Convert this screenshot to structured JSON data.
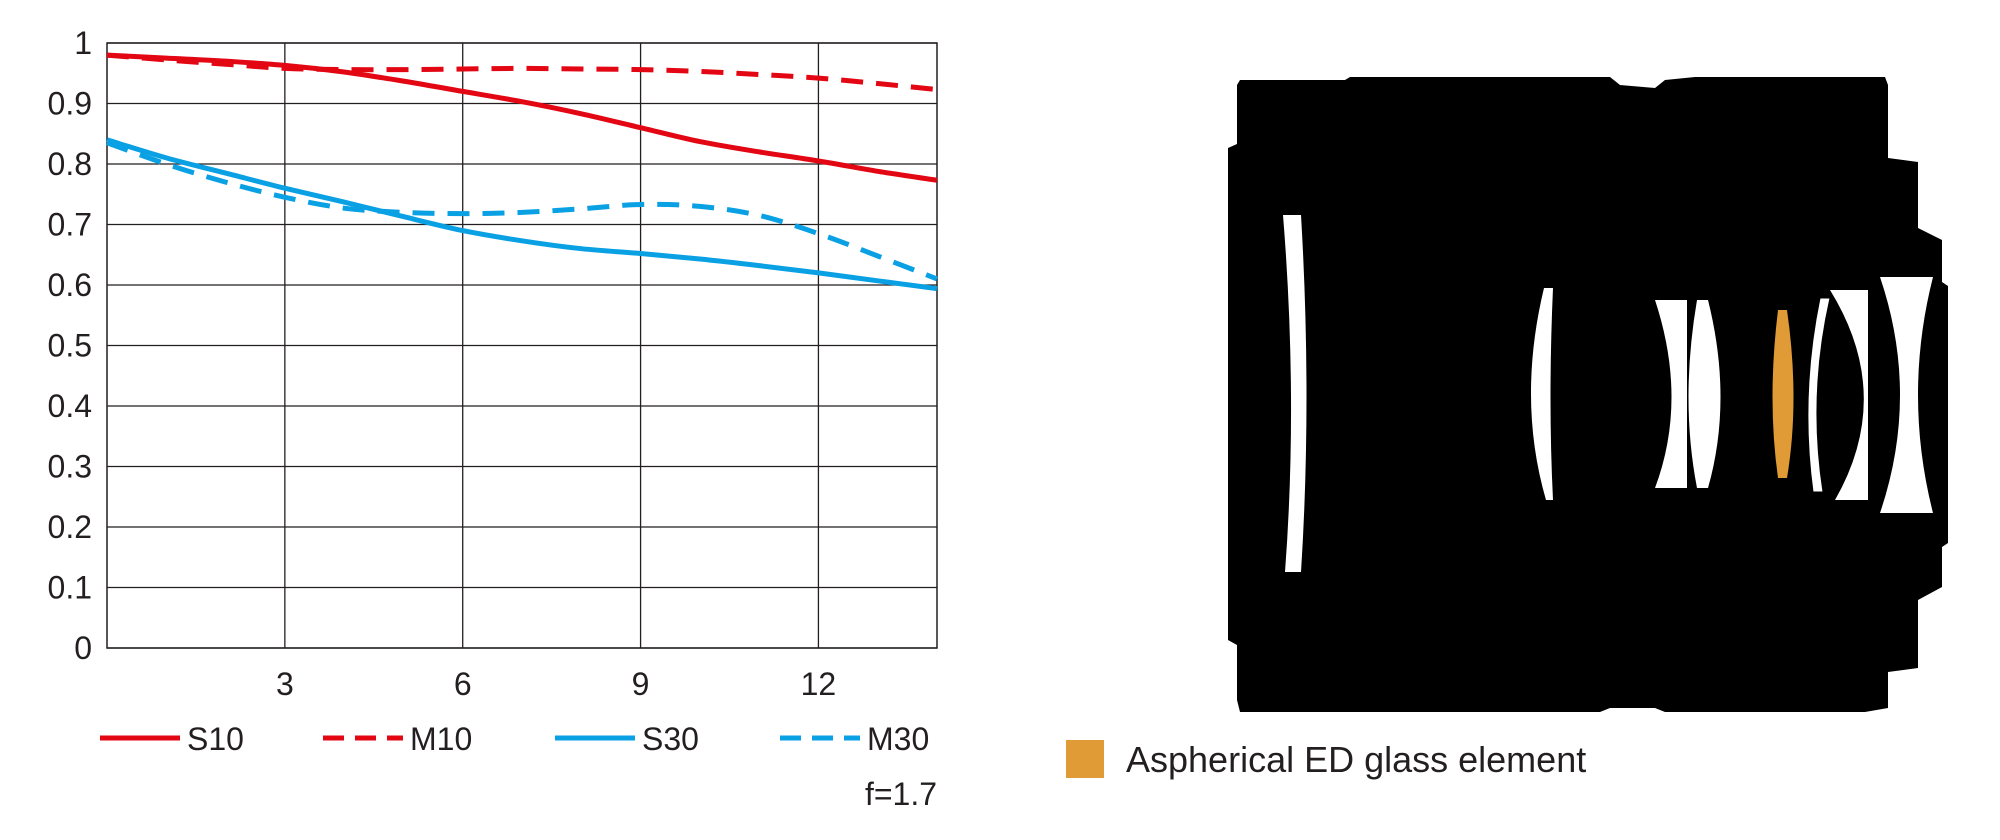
{
  "chart_data": {
    "type": "line",
    "xlabel": "",
    "ylabel": "",
    "xlim": [
      0,
      14
    ],
    "ylim": [
      0,
      1
    ],
    "x_ticks": [
      3,
      6,
      9,
      12
    ],
    "y_ticks": [
      0,
      0.1,
      0.2,
      0.3,
      0.4,
      0.5,
      0.6,
      0.7,
      0.8,
      0.9,
      1
    ],
    "y_tick_labels": [
      "0",
      "0.1",
      "0.2",
      "0.3",
      "0.4",
      "0.5",
      "0.6",
      "0.7",
      "0.8",
      "0.9",
      "1"
    ],
    "grid": true,
    "legend_position": "bottom",
    "annotation": "f=1.7",
    "series": [
      {
        "name": "S10",
        "color": "#e30613",
        "style": "solid",
        "x": [
          0,
          1,
          2,
          3,
          4,
          5,
          6,
          7,
          8,
          9,
          10,
          11,
          12,
          13,
          14
        ],
        "y": [
          0.98,
          0.975,
          0.97,
          0.963,
          0.952,
          0.937,
          0.92,
          0.903,
          0.883,
          0.86,
          0.837,
          0.82,
          0.805,
          0.788,
          0.773
        ]
      },
      {
        "name": "M10",
        "color": "#e30613",
        "style": "dashed",
        "x": [
          0,
          1,
          2,
          3,
          4,
          5,
          6,
          7,
          8,
          9,
          10,
          11,
          12,
          13,
          14
        ],
        "y": [
          0.98,
          0.972,
          0.965,
          0.958,
          0.956,
          0.956,
          0.957,
          0.958,
          0.957,
          0.956,
          0.953,
          0.948,
          0.942,
          0.933,
          0.923
        ]
      },
      {
        "name": "S30",
        "color": "#0aa0e4",
        "style": "solid",
        "x": [
          0,
          1,
          2,
          3,
          4,
          5,
          6,
          7,
          8,
          9,
          10,
          11,
          12,
          13,
          14
        ],
        "y": [
          0.84,
          0.81,
          0.785,
          0.76,
          0.737,
          0.713,
          0.69,
          0.673,
          0.66,
          0.652,
          0.643,
          0.632,
          0.62,
          0.607,
          0.594
        ]
      },
      {
        "name": "M30",
        "color": "#0aa0e4",
        "style": "dashed",
        "x": [
          0,
          1,
          2,
          3,
          4,
          5,
          6,
          7,
          8,
          9,
          10,
          11,
          12,
          13,
          14
        ],
        "y": [
          0.835,
          0.8,
          0.77,
          0.745,
          0.727,
          0.72,
          0.718,
          0.72,
          0.726,
          0.733,
          0.73,
          0.715,
          0.685,
          0.648,
          0.61
        ]
      }
    ]
  },
  "lens_diagram": {
    "body_color": "#000000",
    "element_color": "#ffffff",
    "aspherical_color": "#e09a36",
    "legend_label": "Aspherical ED glass element"
  }
}
